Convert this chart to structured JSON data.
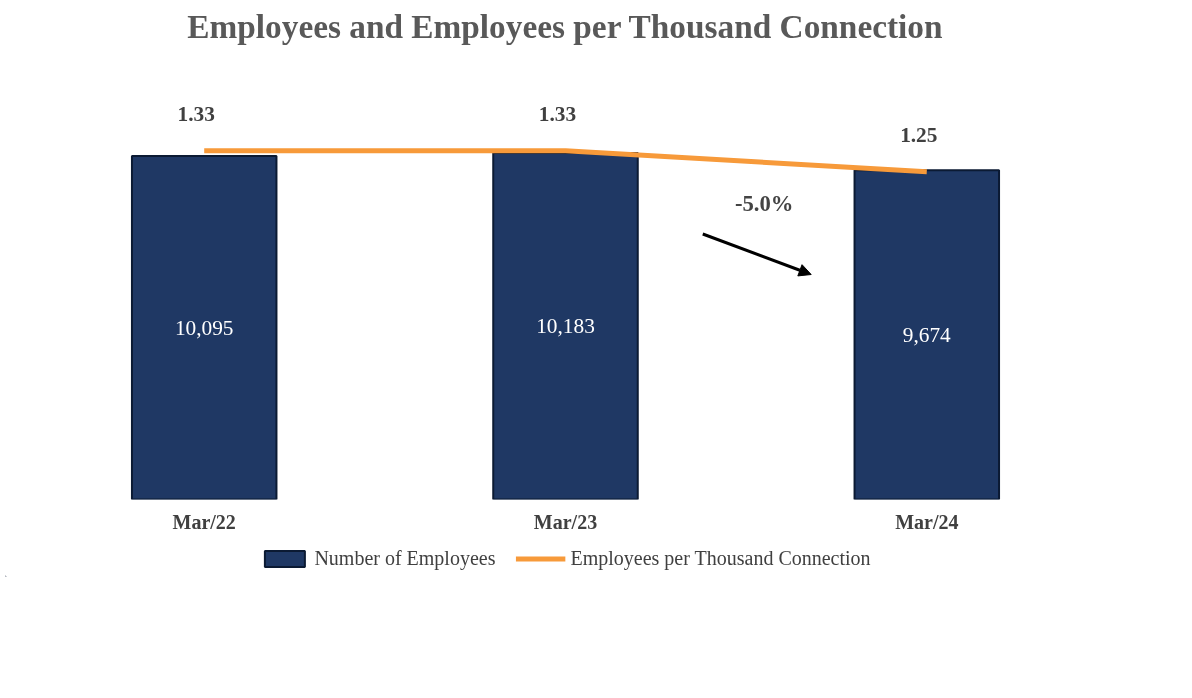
{
  "chart_data": {
    "type": "bar",
    "title": "Employees and Employees per Thousand Connection",
    "categories": [
      "Mar/22",
      "Mar/23",
      "Mar/24"
    ],
    "series": [
      {
        "name": "Number of Employees",
        "color": "#1f3864",
        "values": [
          10095,
          10183,
          9674
        ],
        "value_labels": [
          "10,095",
          "10,183",
          "9,674"
        ]
      },
      {
        "name": "Employees per Thousand Connection",
        "type": "line",
        "axis": "y2",
        "color": "#f79a3a",
        "values": [
          1.33,
          1.33,
          1.25
        ],
        "value_labels": [
          "1.33",
          "1.33",
          "1.25"
        ]
      }
    ],
    "tick_labels": "x",
    "legend": "bottom",
    "marker": "none",
    "annotations": [
      "-5.0%"
    ]
  }
}
